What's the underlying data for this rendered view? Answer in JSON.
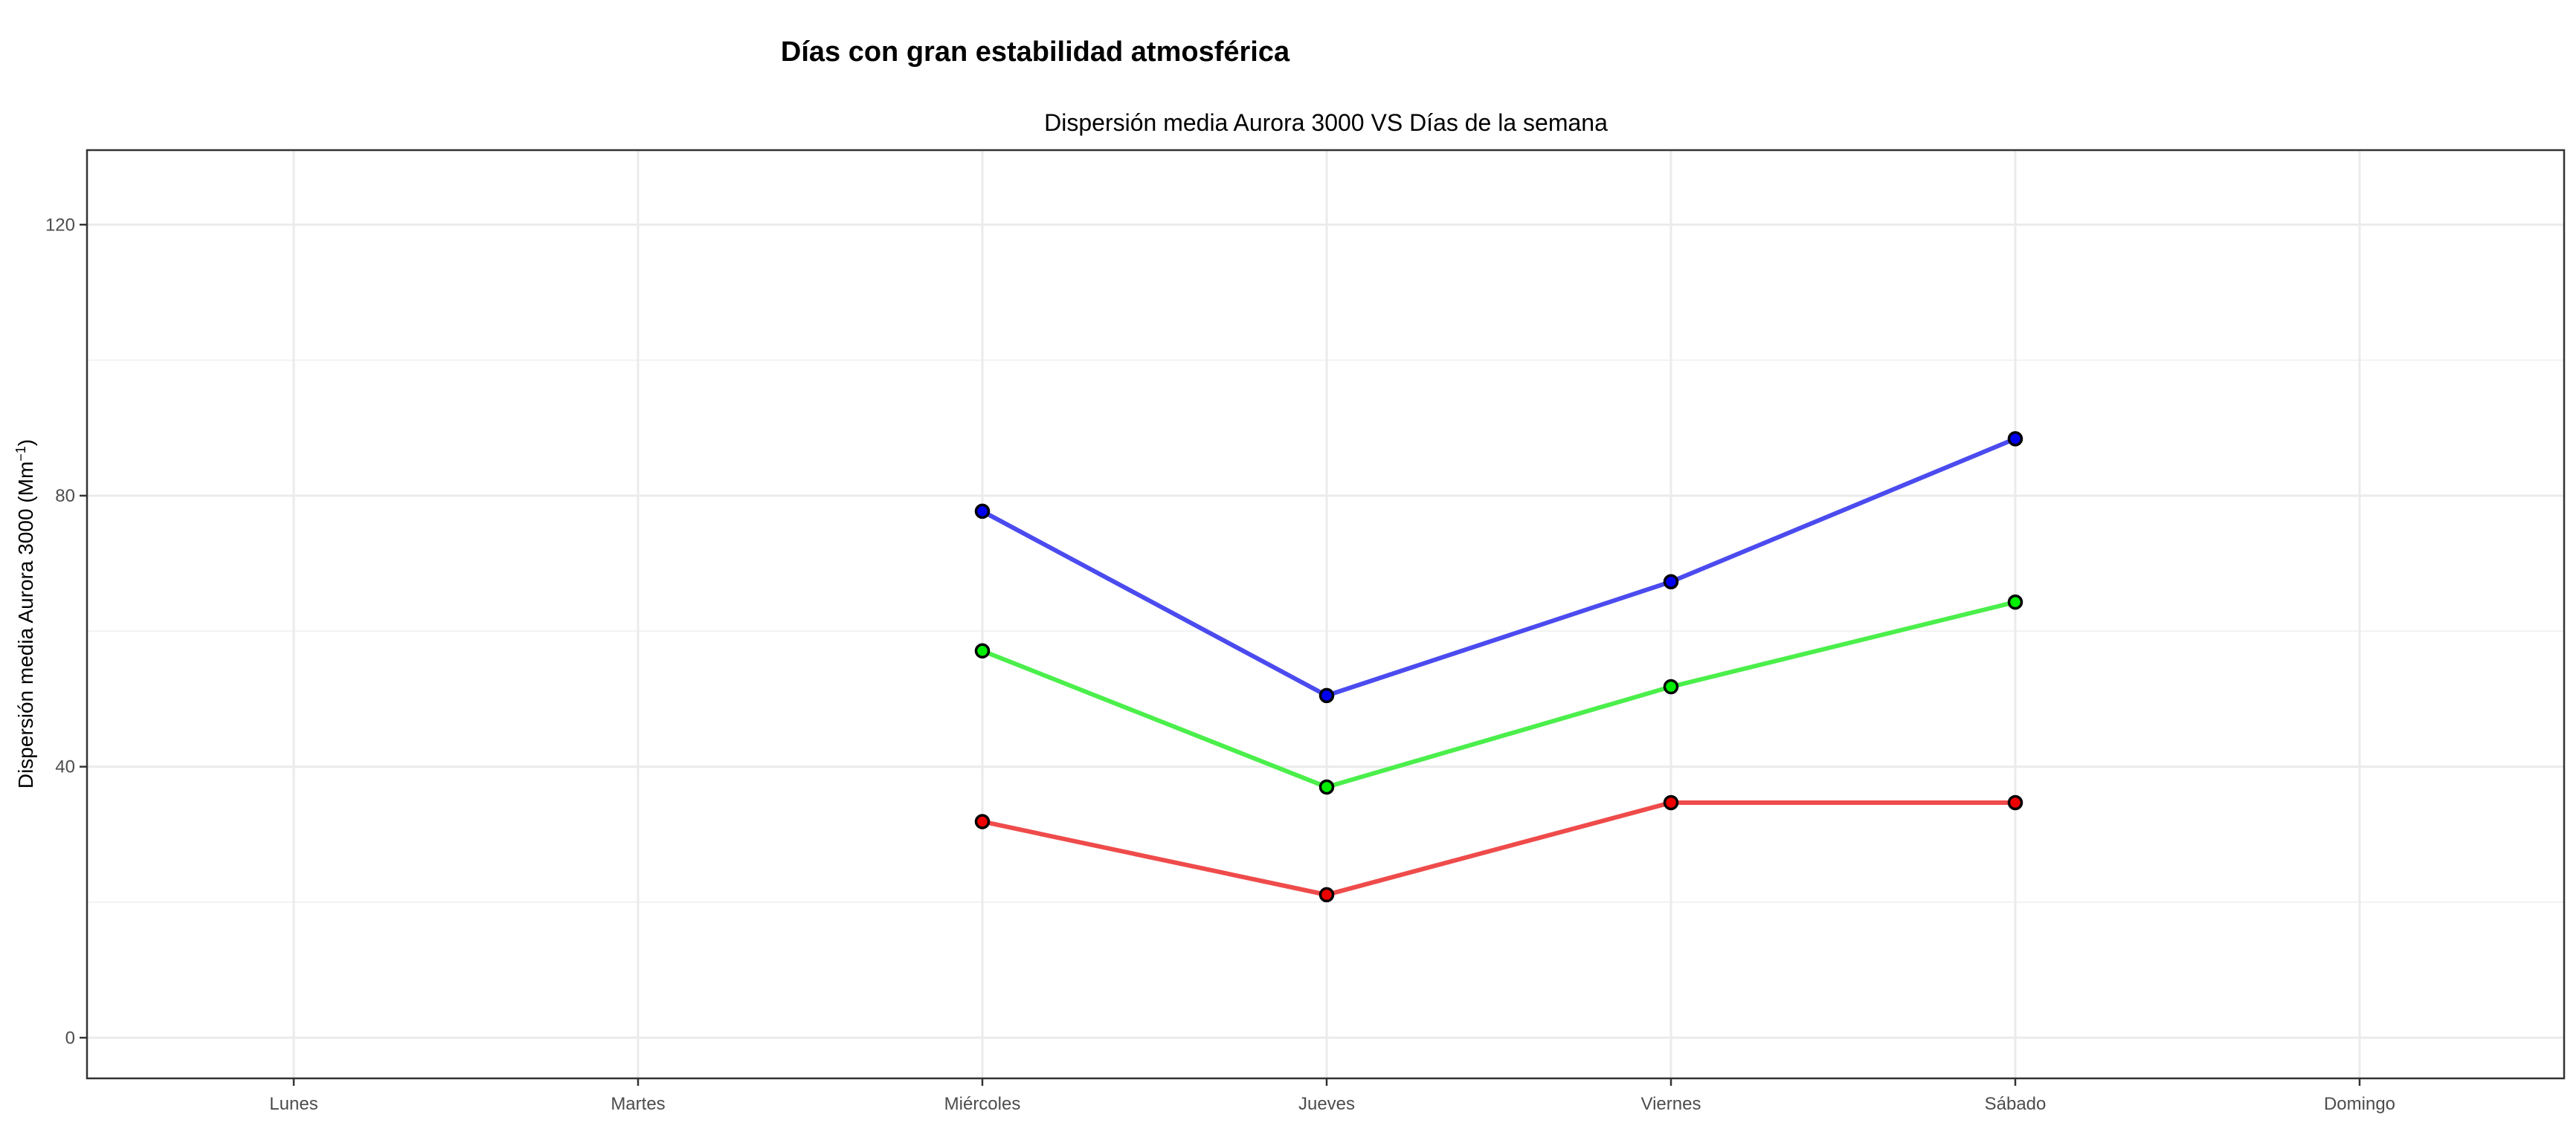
{
  "chart_data": {
    "type": "line",
    "title": "Días con gran estabilidad atmosférica",
    "subtitle": "Dispersión media Aurora 3000 VS Días de la semana",
    "ylabel": "Dispersión media Aurora 3000 (Mm",
    "ylabel_sup": "−1",
    "ylabel_close": ")",
    "xlabel": "",
    "categories": [
      "Lunes",
      "Martes",
      "Miércoles",
      "Jueves",
      "Viernes",
      "Sábado",
      "Domingo"
    ],
    "ylim": [
      -6,
      131
    ],
    "yticks": [
      0,
      40,
      80,
      120
    ],
    "yticks_minor": [
      20,
      60,
      100
    ],
    "grid": true,
    "legend": "none",
    "series": [
      {
        "color": "#4b4bef",
        "marker_fill": "#0000ee",
        "values": [
          null,
          null,
          77.7,
          50.5,
          67.3,
          88.4,
          null
        ]
      },
      {
        "color": "#4bef4b",
        "marker_fill": "#00ee00",
        "values": [
          null,
          null,
          57.1,
          37.0,
          51.8,
          64.3,
          null
        ]
      },
      {
        "color": "#ef4b4b",
        "marker_fill": "#ee0000",
        "values": [
          null,
          null,
          31.9,
          21.1,
          34.7,
          34.7,
          null
        ]
      }
    ]
  }
}
